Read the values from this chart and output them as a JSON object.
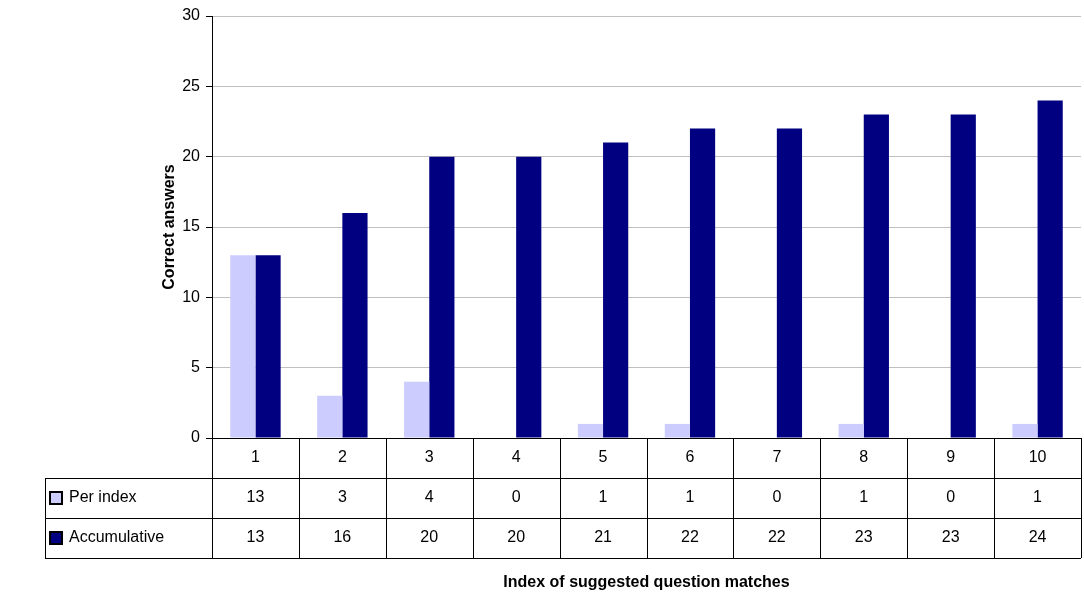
{
  "chart_data": {
    "type": "bar",
    "annotations": [
      "Index of suggested question matches"
    ],
    "ylabel": "Correct answers",
    "categories": [
      "1",
      "2",
      "3",
      "4",
      "5",
      "6",
      "7",
      "8",
      "9",
      "10"
    ],
    "series": [
      {
        "name": "Per index",
        "color": "#ccccff",
        "values": [
          13,
          3,
          4,
          0,
          1,
          1,
          0,
          1,
          0,
          1
        ]
      },
      {
        "name": "Accumulative",
        "color": "#000080",
        "values": [
          13,
          16,
          20,
          20,
          21,
          22,
          22,
          23,
          23,
          24
        ]
      }
    ],
    "ylim": [
      0,
      30
    ],
    "yticks": [
      0,
      5,
      10,
      15,
      20,
      25,
      30
    ],
    "grid": "y",
    "legend": "bottom left",
    "data_labels": true
  }
}
